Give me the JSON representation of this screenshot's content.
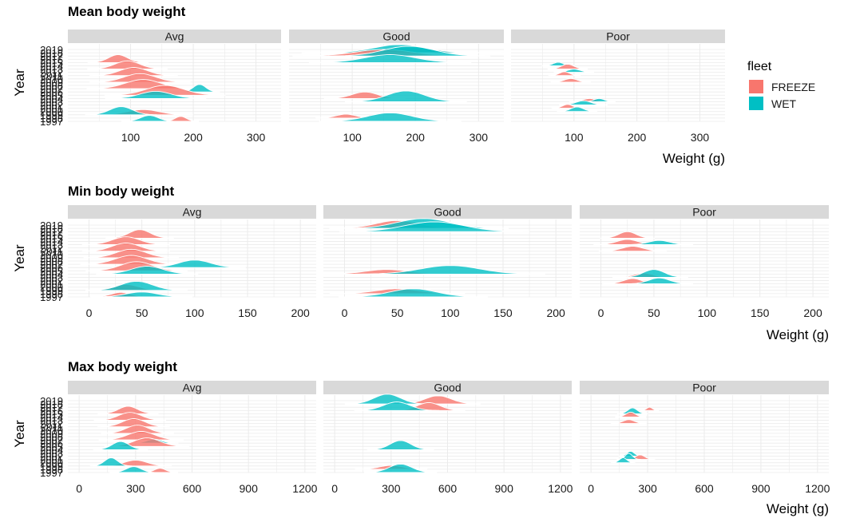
{
  "legend": {
    "title": "fleet",
    "entries": [
      {
        "label": "FREEZE",
        "color": "#F8766D"
      },
      {
        "label": "WET",
        "color": "#00BFC4"
      }
    ]
  },
  "chart_data": [
    {
      "type": "ridgeline",
      "title": "Mean body weight",
      "xlabel": "Weight (g)",
      "ylabel": "Year",
      "facets": [
        "Avg",
        "Good",
        "Poor"
      ],
      "xlim": [
        0,
        340
      ],
      "xticks": [
        100,
        200,
        300
      ],
      "years": [
        "1997",
        "1998",
        "1999",
        "2000",
        "2001",
        "2002",
        "2003",
        "2004",
        "2005",
        "2006",
        "2007",
        "2008",
        "2009",
        "2010",
        "2011",
        "2012",
        "2013",
        "2014",
        "2015",
        "2016",
        "2017",
        "2018",
        "2019"
      ],
      "series": [
        {
          "facet": "Avg",
          "fleet": "FREEZE",
          "ridges": [
            {
              "year": "1997",
              "peak": 180,
              "sd": 9,
              "height": 1.5
            },
            {
              "year": "1999",
              "peak": 120,
              "sd": 25,
              "height": 1.6
            },
            {
              "year": "2005",
              "peak": 155,
              "sd": 30,
              "height": 3.0
            },
            {
              "year": "2007",
              "peak": 120,
              "sd": 28,
              "height": 2.8
            },
            {
              "year": "2009",
              "peak": 115,
              "sd": 25,
              "height": 2.6
            },
            {
              "year": "2011",
              "peak": 105,
              "sd": 22,
              "height": 2.5
            },
            {
              "year": "2013",
              "peak": 95,
              "sd": 20,
              "height": 2.5
            },
            {
              "year": "2015",
              "peak": 80,
              "sd": 15,
              "height": 2.4
            }
          ]
        },
        {
          "facet": "Avg",
          "fleet": "WET",
          "ridges": [
            {
              "year": "1997",
              "peak": 130,
              "sd": 14,
              "height": 1.8
            },
            {
              "year": "1999",
              "peak": 85,
              "sd": 18,
              "height": 2.5
            },
            {
              "year": "2004",
              "peak": 140,
              "sd": 25,
              "height": 2.2
            },
            {
              "year": "2006",
              "peak": 210,
              "sd": 10,
              "height": 2.3
            }
          ]
        },
        {
          "facet": "Good",
          "fleet": "FREEZE",
          "ridges": [
            {
              "year": "1998",
              "peak": 90,
              "sd": 15,
              "height": 1.2
            },
            {
              "year": "2004",
              "peak": 120,
              "sd": 20,
              "height": 2.0
            },
            {
              "year": "2017",
              "peak": 150,
              "sd": 45,
              "height": 2.0
            },
            {
              "year": "2018",
              "peak": 180,
              "sd": 50,
              "height": 1.5
            }
          ]
        },
        {
          "facet": "Good",
          "fleet": "WET",
          "ridges": [
            {
              "year": "1997",
              "peak": 160,
              "sd": 35,
              "height": 2.6
            },
            {
              "year": "2003",
              "peak": 185,
              "sd": 30,
              "height": 3.3
            },
            {
              "year": "2015",
              "peak": 160,
              "sd": 40,
              "height": 2.4
            },
            {
              "year": "2017",
              "peak": 190,
              "sd": 40,
              "height": 3.0
            },
            {
              "year": "2018",
              "peak": 175,
              "sd": 40,
              "height": 2.5
            }
          ]
        },
        {
          "facet": "Poor",
          "fleet": "FREEZE",
          "ridges": [
            {
              "year": "2001",
              "peak": 90,
              "sd": 8,
              "height": 1.2
            },
            {
              "year": "2003",
              "peak": 125,
              "sd": 10,
              "height": 1.0
            },
            {
              "year": "2009",
              "peak": 95,
              "sd": 10,
              "height": 1.1
            },
            {
              "year": "2011",
              "peak": 85,
              "sd": 8,
              "height": 1.2
            },
            {
              "year": "2013",
              "peak": 90,
              "sd": 10,
              "height": 1.5
            }
          ]
        },
        {
          "facet": "Poor",
          "fleet": "WET",
          "ridges": [
            {
              "year": "2000",
              "peak": 105,
              "sd": 10,
              "height": 1.4
            },
            {
              "year": "2002",
              "peak": 115,
              "sd": 12,
              "height": 1.3
            },
            {
              "year": "2003",
              "peak": 140,
              "sd": 8,
              "height": 1.0
            },
            {
              "year": "2012",
              "peak": 100,
              "sd": 10,
              "height": 1.0
            },
            {
              "year": "2014",
              "peak": 75,
              "sd": 8,
              "height": 1.1
            }
          ]
        }
      ]
    },
    {
      "type": "ridgeline",
      "title": "Min body weight",
      "xlabel": "Weight (g)",
      "ylabel": "Year",
      "facets": [
        "Avg",
        "Good",
        "Poor"
      ],
      "xlim": [
        -20,
        215
      ],
      "xticks": [
        0,
        50,
        100,
        150,
        200
      ],
      "years": [
        "1997",
        "1998",
        "1999",
        "2000",
        "2001",
        "2002",
        "2003",
        "2004",
        "2005",
        "2006",
        "2007",
        "2008",
        "2009",
        "2010",
        "2011",
        "2012",
        "2013",
        "2014",
        "2015",
        "2016",
        "2017",
        "2018",
        "2019"
      ],
      "series": [
        {
          "facet": "Avg",
          "fleet": "FREEZE",
          "ridges": [
            {
              "year": "1997",
              "peak": 30,
              "sd": 9,
              "height": 1.4
            },
            {
              "year": "1999",
              "peak": 35,
              "sd": 12,
              "height": 1.8
            },
            {
              "year": "2005",
              "peak": 45,
              "sd": 15,
              "height": 2.8
            },
            {
              "year": "2007",
              "peak": 40,
              "sd": 15,
              "height": 2.7
            },
            {
              "year": "2009",
              "peak": 40,
              "sd": 14,
              "height": 2.6
            },
            {
              "year": "2011",
              "peak": 35,
              "sd": 13,
              "height": 2.5
            },
            {
              "year": "2013",
              "peak": 35,
              "sd": 13,
              "height": 2.4
            },
            {
              "year": "2015",
              "peak": 48,
              "sd": 10,
              "height": 2.6
            }
          ]
        },
        {
          "facet": "Avg",
          "fleet": "WET",
          "ridges": [
            {
              "year": "1997",
              "peak": 50,
              "sd": 15,
              "height": 1.5
            },
            {
              "year": "1999",
              "peak": 45,
              "sd": 15,
              "height": 2.8
            },
            {
              "year": "2004",
              "peak": 55,
              "sd": 15,
              "height": 2.4
            },
            {
              "year": "2006",
              "peak": 100,
              "sd": 15,
              "height": 2.3
            }
          ]
        },
        {
          "facet": "Good",
          "fleet": "FREEZE",
          "ridges": [
            {
              "year": "1998",
              "peak": 50,
              "sd": 20,
              "height": 1.5
            },
            {
              "year": "2004",
              "peak": 40,
              "sd": 20,
              "height": 1.4
            },
            {
              "year": "2018",
              "peak": 50,
              "sd": 20,
              "height": 2.4
            }
          ]
        },
        {
          "facet": "Good",
          "fleet": "WET",
          "ridges": [
            {
              "year": "1997",
              "peak": 65,
              "sd": 22,
              "height": 2.5
            },
            {
              "year": "2004",
              "peak": 100,
              "sd": 28,
              "height": 2.6
            },
            {
              "year": "2017",
              "peak": 85,
              "sd": 28,
              "height": 3.0
            },
            {
              "year": "2018",
              "peak": 75,
              "sd": 25,
              "height": 3.0
            }
          ]
        },
        {
          "facet": "Poor",
          "fleet": "FREEZE",
          "ridges": [
            {
              "year": "2001",
              "peak": 30,
              "sd": 9,
              "height": 1.6
            },
            {
              "year": "2003",
              "peak": 40,
              "sd": 9,
              "height": 1.3
            },
            {
              "year": "2011",
              "peak": 30,
              "sd": 10,
              "height": 1.5
            },
            {
              "year": "2013",
              "peak": 25,
              "sd": 10,
              "height": 1.6
            },
            {
              "year": "2015",
              "peak": 25,
              "sd": 8,
              "height": 2.0
            }
          ]
        },
        {
          "facet": "Poor",
          "fleet": "WET",
          "ridges": [
            {
              "year": "2001",
              "peak": 55,
              "sd": 10,
              "height": 1.8
            },
            {
              "year": "2003",
              "peak": 50,
              "sd": 10,
              "height": 2.4
            },
            {
              "year": "2013",
              "peak": 55,
              "sd": 10,
              "height": 1.3
            }
          ]
        }
      ]
    },
    {
      "type": "ridgeline",
      "title": "Max body weight",
      "xlabel": "Weight (g)",
      "ylabel": "Year",
      "facets": [
        "Avg",
        "Good",
        "Poor"
      ],
      "xlim": [
        -60,
        1260
      ],
      "xticks": [
        0,
        300,
        600,
        900,
        1200
      ],
      "years": [
        "1997",
        "1998",
        "1999",
        "2000",
        "2001",
        "2002",
        "2003",
        "2004",
        "2005",
        "2006",
        "2007",
        "2008",
        "2009",
        "2010",
        "2011",
        "2012",
        "2013",
        "2014",
        "2015",
        "2016",
        "2017",
        "2018",
        "2019"
      ],
      "series": [
        {
          "facet": "Avg",
          "fleet": "FREEZE",
          "ridges": [
            {
              "year": "1997",
              "peak": 430,
              "sd": 30,
              "height": 1.3
            },
            {
              "year": "1999",
              "peak": 300,
              "sd": 60,
              "height": 1.8
            },
            {
              "year": "2005",
              "peak": 360,
              "sd": 70,
              "height": 2.6
            },
            {
              "year": "2007",
              "peak": 330,
              "sd": 70,
              "height": 2.6
            },
            {
              "year": "2009",
              "peak": 310,
              "sd": 60,
              "height": 2.5
            },
            {
              "year": "2011",
              "peak": 290,
              "sd": 60,
              "height": 2.5
            },
            {
              "year": "2013",
              "peak": 270,
              "sd": 60,
              "height": 2.4
            },
            {
              "year": "2015",
              "peak": 260,
              "sd": 50,
              "height": 2.3
            }
          ]
        },
        {
          "facet": "Avg",
          "fleet": "WET",
          "ridges": [
            {
              "year": "1997",
              "peak": 290,
              "sd": 40,
              "height": 1.8
            },
            {
              "year": "1999",
              "peak": 170,
              "sd": 35,
              "height": 2.5
            },
            {
              "year": "2004",
              "peak": 220,
              "sd": 45,
              "height": 2.5
            },
            {
              "year": "2006",
              "peak": 400,
              "sd": 40,
              "height": 1.2
            }
          ]
        },
        {
          "facet": "Good",
          "fleet": "FREEZE",
          "ridges": [
            {
              "year": "1998",
              "peak": 300,
              "sd": 60,
              "height": 1.2
            },
            {
              "year": "2016",
              "peak": 500,
              "sd": 60,
              "height": 2.4
            },
            {
              "year": "2018",
              "peak": 550,
              "sd": 70,
              "height": 2.5
            }
          ]
        },
        {
          "facet": "Good",
          "fleet": "WET",
          "ridges": [
            {
              "year": "1997",
              "peak": 350,
              "sd": 60,
              "height": 2.6
            },
            {
              "year": "2004",
              "peak": 350,
              "sd": 55,
              "height": 2.8
            },
            {
              "year": "2016",
              "peak": 330,
              "sd": 70,
              "height": 2.6
            },
            {
              "year": "2018",
              "peak": 280,
              "sd": 70,
              "height": 3.0
            }
          ]
        },
        {
          "facet": "Poor",
          "fleet": "FREEZE",
          "ridges": [
            {
              "year": "2001",
              "peak": 260,
              "sd": 25,
              "height": 1.4
            },
            {
              "year": "2012",
              "peak": 200,
              "sd": 30,
              "height": 1.2
            },
            {
              "year": "2014",
              "peak": 210,
              "sd": 25,
              "height": 1.5
            },
            {
              "year": "2016",
              "peak": 310,
              "sd": 15,
              "height": 1.0
            }
          ]
        },
        {
          "facet": "Poor",
          "fleet": "WET",
          "ridges": [
            {
              "year": "2000",
              "peak": 170,
              "sd": 20,
              "height": 1.5
            },
            {
              "year": "2001",
              "peak": 200,
              "sd": 20,
              "height": 1.8
            },
            {
              "year": "2002",
              "peak": 210,
              "sd": 20,
              "height": 1.5
            },
            {
              "year": "2015",
              "peak": 220,
              "sd": 25,
              "height": 1.8
            }
          ]
        }
      ]
    }
  ]
}
